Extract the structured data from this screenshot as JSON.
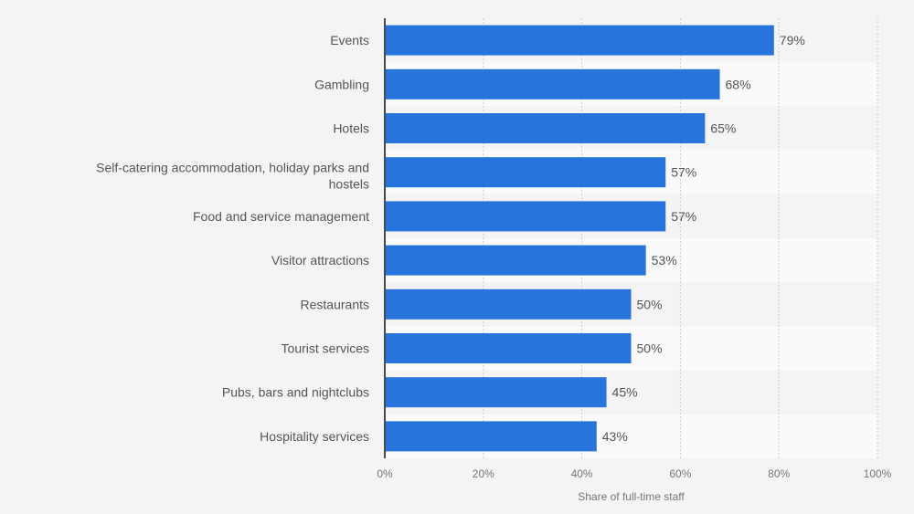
{
  "chart_data": {
    "type": "bar",
    "orientation": "horizontal",
    "title": "",
    "xlabel": "Share of full-time staff",
    "ylabel": "",
    "categories": [
      "Events",
      "Gambling",
      "Hotels",
      "Self-catering accommodation, holiday parks and hostels",
      "Food and service management",
      "Visitor attractions",
      "Restaurants",
      "Tourist services",
      "Pubs, bars and nightclubs",
      "Hospitality services"
    ],
    "category_label_lines": [
      [
        "Events"
      ],
      [
        "Gambling"
      ],
      [
        "Hotels"
      ],
      [
        "Self-catering accommodation, holiday parks and",
        "hostels"
      ],
      [
        "Food and service management"
      ],
      [
        "Visitor attractions"
      ],
      [
        "Restaurants"
      ],
      [
        "Tourist services"
      ],
      [
        "Pubs, bars and nightclubs"
      ],
      [
        "Hospitality services"
      ]
    ],
    "values": [
      79,
      68,
      65,
      57,
      57,
      53,
      50,
      50,
      45,
      43
    ],
    "value_labels": [
      "79%",
      "68%",
      "65%",
      "57%",
      "57%",
      "53%",
      "50%",
      "50%",
      "45%",
      "43%"
    ],
    "xlim": [
      0,
      100
    ],
    "xticks": [
      0,
      20,
      40,
      60,
      80,
      100
    ],
    "xtick_labels": [
      "0%",
      "20%",
      "40%",
      "60%",
      "80%",
      "100%"
    ],
    "grid": true,
    "legend": "none",
    "colors": {
      "bar": "#2775dc",
      "band_light": "#fafafa",
      "band_dark": "#f4f4f4",
      "axis": "#4a4a4a",
      "grid": "#cccccc"
    }
  }
}
